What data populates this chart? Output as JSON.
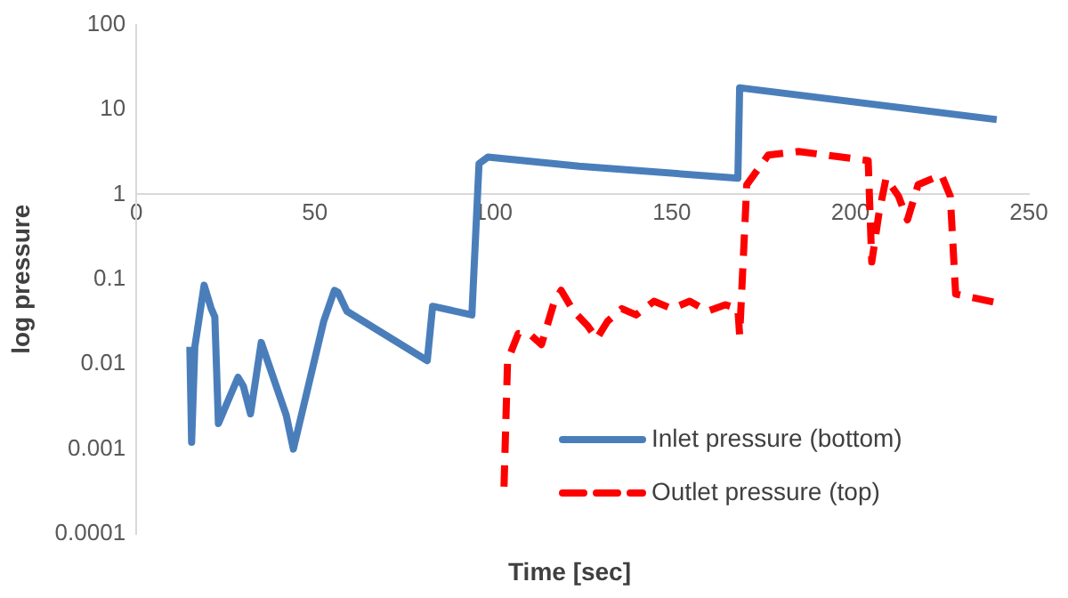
{
  "chart_data": {
    "type": "line",
    "xlabel": "Time [sec]",
    "ylabel": "log pressure",
    "xlim": [
      0,
      250
    ],
    "xticks": [
      0,
      50,
      100,
      150,
      200,
      250
    ],
    "ylim": [
      0.0001,
      100
    ],
    "yticks": [
      0.0001,
      0.001,
      0.01,
      0.1,
      1,
      10,
      100
    ],
    "log": "y",
    "grid": false,
    "legend": "bottom right",
    "marker": "none",
    "series": [
      {
        "name": "Inlet pressure (bottom)",
        "color": "#4a7ebb",
        "line_style": "solid",
        "x": [
          15,
          15.5,
          16.4,
          19,
          21,
          22,
          23,
          28.5,
          30,
          32,
          35,
          42,
          44,
          52.5,
          55.5,
          56.5,
          59,
          81.5,
          83,
          94,
          96,
          98.5,
          124,
          168.5,
          169,
          241
        ],
        "values": [
          0.016,
          0.0012,
          0.016,
          0.085,
          0.045,
          0.036,
          0.002,
          0.007,
          0.0055,
          0.0026,
          0.018,
          0.0025,
          0.001,
          0.032,
          0.074,
          0.07,
          0.042,
          0.011,
          0.048,
          0.038,
          2.3,
          2.75,
          2.15,
          1.55,
          18,
          7.6
        ]
      },
      {
        "name": "Outlet pressure (top)",
        "color": "#ff0000",
        "line_style": "dashed",
        "x": [
          103,
          104,
          107,
          110.5,
          113.5,
          117,
          119,
          122.5,
          126.5,
          129,
          132,
          136,
          140,
          145,
          150,
          155,
          160,
          165,
          168.5,
          169,
          171,
          177,
          185.5,
          205,
          206,
          208,
          210,
          213.5,
          216,
          219,
          225.5,
          228,
          229.5,
          241
        ],
        "values": [
          0.00036,
          0.011,
          0.023,
          0.022,
          0.017,
          0.053,
          0.074,
          0.042,
          0.028,
          0.02,
          0.032,
          0.045,
          0.038,
          0.055,
          0.045,
          0.055,
          0.042,
          0.05,
          0.045,
          0.022,
          1.3,
          2.9,
          3.2,
          2.5,
          0.16,
          0.59,
          1.55,
          0.95,
          0.5,
          1.3,
          1.7,
          0.95,
          0.067,
          0.053
        ]
      }
    ]
  }
}
